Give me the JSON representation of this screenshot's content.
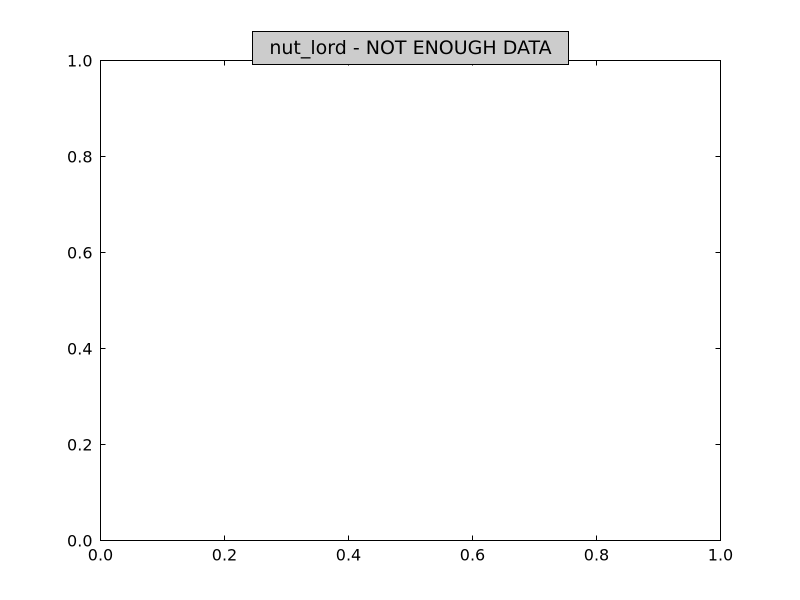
{
  "chart_data": {
    "type": "line",
    "title": "nut_lord - NOT ENOUGH DATA",
    "xlabel": "",
    "ylabel": "",
    "series": [],
    "xlim": [
      0.0,
      1.0
    ],
    "ylim": [
      0.0,
      1.0
    ],
    "x_ticks": [
      "0.0",
      "0.2",
      "0.4",
      "0.6",
      "0.8",
      "1.0"
    ],
    "y_ticks": [
      "0.0",
      "0.2",
      "0.4",
      "0.6",
      "0.8",
      "1.0"
    ],
    "grid": false,
    "title_box_color": "#cccccc",
    "axes_color": "#000000",
    "background_color": "#ffffff"
  }
}
